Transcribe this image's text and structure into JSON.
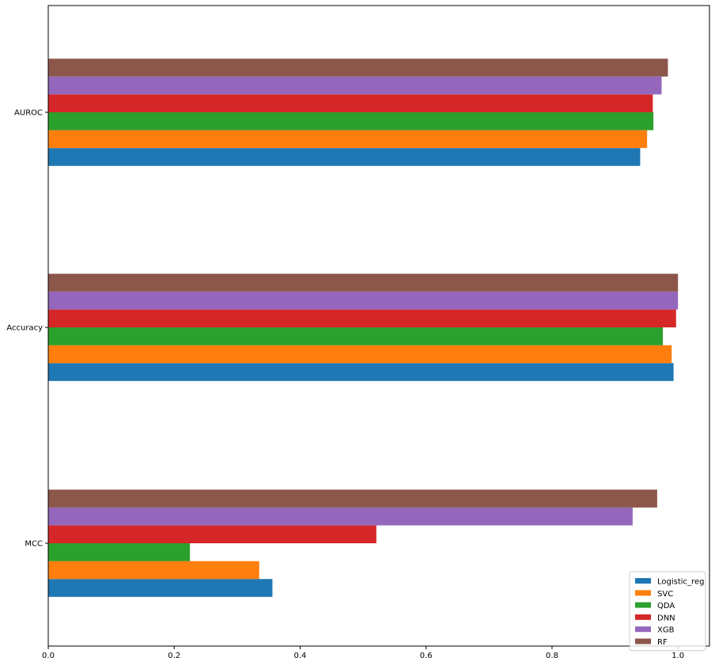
{
  "chart_data": {
    "type": "bar",
    "orientation": "horizontal",
    "categories": [
      "MCC",
      "Accuracy",
      "AUROC"
    ],
    "series": [
      {
        "name": "Logistic_reg",
        "color": "#1f77b4",
        "values": [
          0.356,
          0.993,
          0.94
        ]
      },
      {
        "name": "SVC",
        "color": "#ff7f0e",
        "values": [
          0.335,
          0.99,
          0.951
        ]
      },
      {
        "name": "QDA",
        "color": "#2ca02c",
        "values": [
          0.225,
          0.976,
          0.961
        ]
      },
      {
        "name": "DNN",
        "color": "#d62728",
        "values": [
          0.521,
          0.997,
          0.96
        ]
      },
      {
        "name": "XGB",
        "color": "#9467bd",
        "values": [
          0.928,
          1.0,
          0.974
        ]
      },
      {
        "name": "RF",
        "color": "#8c564b",
        "values": [
          0.967,
          1.0,
          0.984
        ]
      }
    ],
    "x_ticks": [
      "0.0",
      "0.2",
      "0.4",
      "0.6",
      "0.8",
      "1.0"
    ],
    "xlim": [
      0,
      1.05
    ],
    "title": "",
    "xlabel": "",
    "ylabel": "",
    "grid": false,
    "legend_position": "lower right"
  }
}
